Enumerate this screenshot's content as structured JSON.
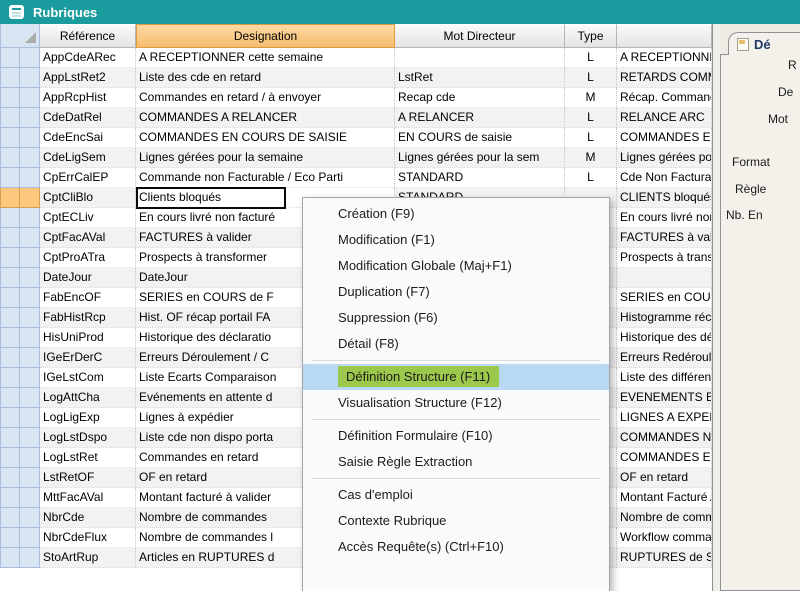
{
  "window": {
    "title": "Rubriques"
  },
  "colors": {
    "titlebar": "#1A9B9E",
    "sorted_header": "#F6BD70",
    "selected_row_marker": "#FBC87D",
    "gutter": "#DAE5F4",
    "menu_hover": "#B9D8F3",
    "menu_highlight": "#9CC94C"
  },
  "table": {
    "columns": [
      {
        "label": "Référence"
      },
      {
        "label": "Designation",
        "sorted": true
      },
      {
        "label": "Mot Directeur"
      },
      {
        "label": "Type"
      },
      {
        "label": ""
      }
    ],
    "rows": [
      {
        "ref": "AppCdeARec",
        "designation": "A RECEPTIONNER cette semaine",
        "mot": "",
        "type": "L",
        "extra": "A RECEPTIONNE"
      },
      {
        "ref": "AppLstRet2",
        "designation": "Liste des cde en retard",
        "mot": "LstRet",
        "type": "L",
        "extra": "RETARDS COMM"
      },
      {
        "ref": "AppRcpHist",
        "designation": "Commandes en retard / à envoyer",
        "mot": "Recap cde",
        "type": "M",
        "extra": "Récap. Command"
      },
      {
        "ref": "CdeDatRel",
        "designation": "COMMANDES A RELANCER",
        "mot": "A RELANCER",
        "type": "L",
        "extra": "RELANCE ARC"
      },
      {
        "ref": "CdeEncSai",
        "designation": "COMMANDES EN COURS DE SAISIE",
        "mot": "EN COURS de saisie",
        "type": "L",
        "extra": "COMMANDES EN"
      },
      {
        "ref": "CdeLigSem",
        "designation": "Lignes gérées pour la semaine",
        "mot": "Lignes gérées pour la sem",
        "type": "M",
        "extra": "Lignes gérées pou"
      },
      {
        "ref": "CpErrCalEP",
        "designation": "Commande non Facturable / Eco Parti",
        "mot": "STANDARD",
        "type": "L",
        "extra": "Cde Non Facturab"
      },
      {
        "ref": "CptCliBlo",
        "designation": "Clients bloqués",
        "mot": "STANDARD",
        "type": "",
        "extra": "CLIENTS bloqués",
        "selected": true
      },
      {
        "ref": "CptECLiv",
        "designation": "En cours livré non facturé",
        "mot": "",
        "type": "",
        "extra": "En cours livré non"
      },
      {
        "ref": "CptFacAVal",
        "designation": "FACTURES à valider",
        "mot": "",
        "type": "",
        "extra": "FACTURES à vali"
      },
      {
        "ref": "CptProATra",
        "designation": "Prospects à transformer",
        "mot": "",
        "type": "",
        "extra": "Prospects à transf"
      },
      {
        "ref": "DateJour",
        "designation": "DateJour",
        "mot": "",
        "type": "",
        "extra": ""
      },
      {
        "ref": "FabEncOF",
        "designation": "SERIES en COURS de F",
        "mot": "",
        "type": "",
        "extra": "SERIES en COUR"
      },
      {
        "ref": "FabHistRcp",
        "designation": "Hist. OF récap portail FA",
        "mot": "",
        "type": "",
        "extra": "Histogramme réca"
      },
      {
        "ref": "HisUniProd",
        "designation": "Historique des déclaratio",
        "mot": "",
        "type": "",
        "extra": "Historique des déc"
      },
      {
        "ref": "IGeErDerC",
        "designation": "Erreurs Déroulement / C",
        "mot": "",
        "type": "",
        "extra": "Erreurs Redéroule"
      },
      {
        "ref": "IGeLstCom",
        "designation": "Liste Ecarts Comparaison",
        "mot": "",
        "type": "",
        "extra": "Liste des différenc"
      },
      {
        "ref": "LogAttCha",
        "designation": "Evénements en attente d",
        "mot": "",
        "type": "",
        "extra": "EVENEMENTS EN"
      },
      {
        "ref": "LogLigExp",
        "designation": "Lignes à expédier",
        "mot": "",
        "type": "",
        "extra": "LIGNES A EXPED"
      },
      {
        "ref": "LogLstDspo",
        "designation": "Liste cde non dispo porta",
        "mot": "",
        "type": "",
        "extra": "COMMANDES NO"
      },
      {
        "ref": "LogLstRet",
        "designation": "Commandes en retard",
        "mot": "",
        "type": "",
        "extra": "COMMANDES EN"
      },
      {
        "ref": "LstRetOF",
        "designation": "OF en retard",
        "mot": "",
        "type": "",
        "extra": "OF en retard"
      },
      {
        "ref": "MttFacAVal",
        "designation": "Montant facturé à valider",
        "mot": "",
        "type": "",
        "extra": "Montant Facturé A"
      },
      {
        "ref": "NbrCde",
        "designation": "Nombre de commandes",
        "mot": "",
        "type": "",
        "extra": "Nombre de comma"
      },
      {
        "ref": "NbrCdeFlux",
        "designation": "Nombre de commandes l",
        "mot": "",
        "type": "",
        "extra": "Workflow comman"
      },
      {
        "ref": "StoArtRup",
        "designation": "Articles en RUPTURES d",
        "mot": "",
        "type": "",
        "extra": "RUPTURES de S"
      }
    ]
  },
  "context_menu": {
    "groups": [
      [
        {
          "label": "Création (F9)"
        },
        {
          "label": "Modification (F1)"
        },
        {
          "label": "Modification Globale (Maj+F1)"
        },
        {
          "label": "Duplication (F7)"
        },
        {
          "label": "Suppression (F6)"
        },
        {
          "label": "Détail (F8)"
        }
      ],
      [
        {
          "label": "Définition Structure (F11)",
          "highlighted": true
        },
        {
          "label": "Visualisation Structure (F12)"
        }
      ],
      [
        {
          "label": "Définition Formulaire (F10)"
        },
        {
          "label": "Saisie Règle Extraction"
        }
      ],
      [
        {
          "label": "Cas d'emploi"
        },
        {
          "label": "Contexte Rubrique"
        },
        {
          "label": "Accès Requête(s) (Ctrl+F10)"
        }
      ]
    ]
  },
  "side_panel": {
    "tab_label": "Dé",
    "fields": [
      {
        "label": "R"
      },
      {
        "label": "De"
      },
      {
        "label": "Mot"
      },
      {
        "label": "Format"
      },
      {
        "label": "Règle"
      },
      {
        "label": "Nb. En"
      }
    ]
  }
}
